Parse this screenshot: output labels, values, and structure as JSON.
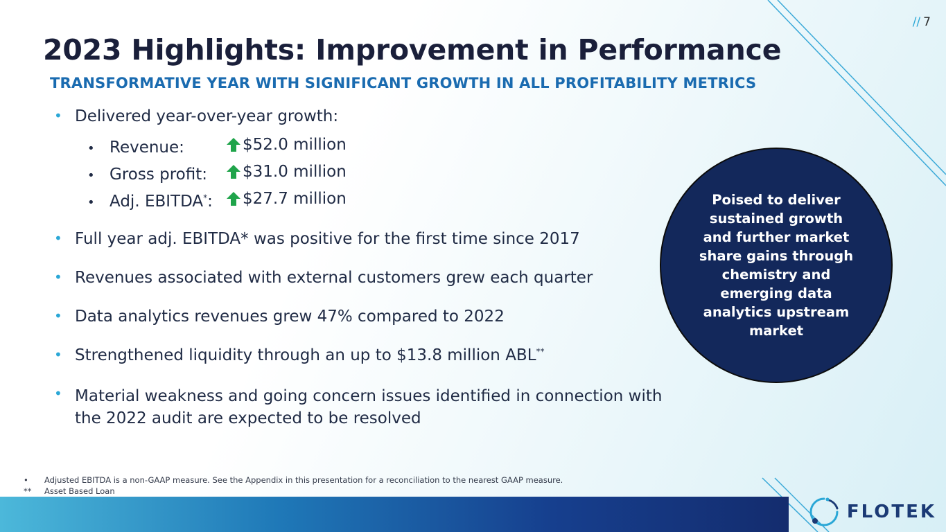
{
  "page": {
    "number_prefix": "//",
    "number": "7"
  },
  "header": {
    "title": "2023 Highlights: Improvement in Performance",
    "subtitle": "TRANSFORMATIVE YEAR WITH SIGNIFICANT GROWTH IN ALL PROFITABILITY METRICS"
  },
  "bullets": {
    "growth": "Delivered year-over-year growth:",
    "growth_items": [
      {
        "label": "Revenue:",
        "value": "$52.0 million"
      },
      {
        "label": "Gross profit:",
        "value": "$31.0 million"
      },
      {
        "label": "Adj. EBITDA",
        "label_sup": "*",
        "label_suffix": ":",
        "value": "$27.7 million"
      }
    ],
    "ebitda_positive": "Full year adj. EBITDA* was positive for the first time since 2017",
    "external_customers": "Revenues associated with external customers grew each quarter",
    "data_analytics": "Data analytics revenues grew 47% compared to 2022",
    "liquidity": "Strengthened liquidity through an up to $13.8 million ABL",
    "liquidity_sup": "**",
    "material_weakness": "Material weakness and going concern issues identified in connection with the 2022 audit are expected to be resolved"
  },
  "callout": {
    "text": "Poised to deliver sustained growth and further market share gains through chemistry and emerging data analytics upstream market"
  },
  "footnotes": [
    {
      "marker": "•",
      "text": "Adjusted EBITDA is a non-GAAP measure.  See the Appendix in this presentation for a reconciliation to the nearest GAAP measure."
    },
    {
      "marker": "**",
      "text": "Asset Based Loan"
    }
  ],
  "logo": {
    "text": "FLOTEK",
    "icon": "flotek-ring-icon"
  },
  "colors": {
    "accent": "#2aa7d6",
    "subtitle": "#1a6bb0",
    "callout_bg": "#13285b",
    "arrow_green": "#1fa44a",
    "logo": "#1b3a75"
  }
}
